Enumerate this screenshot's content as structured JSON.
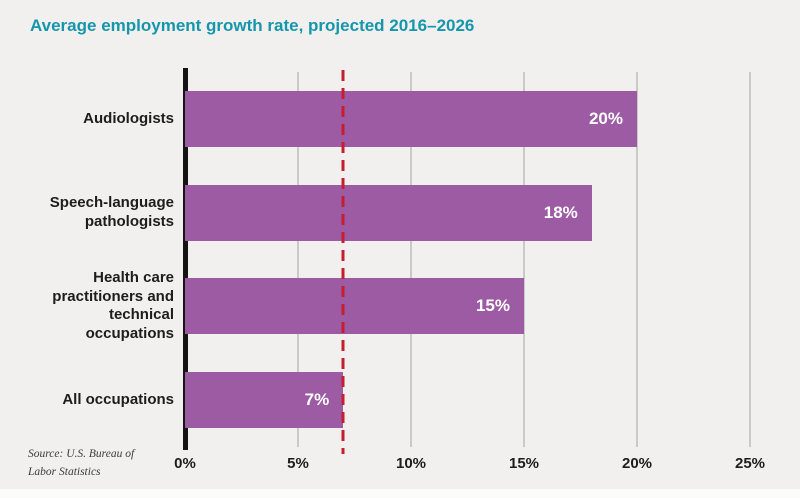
{
  "title": "Average employment growth rate, projected 2016–2026",
  "source": {
    "line1": "Source: U.S. Bureau of",
    "line2": "Labor Statistics"
  },
  "chart_data": {
    "type": "bar",
    "orientation": "horizontal",
    "title": "Average employment growth rate, projected 2016–2026",
    "categories": [
      "Audiologists",
      "Speech-language pathologists",
      "Health care practitioners and technical occupations",
      "All occupations"
    ],
    "values": [
      20,
      18,
      15,
      7
    ],
    "value_labels": [
      "20%",
      "18%",
      "15%",
      "7%"
    ],
    "x_ticks": [
      "0%",
      "5%",
      "10%",
      "15%",
      "20%",
      "25%"
    ],
    "x_tick_values": [
      0,
      5,
      10,
      15,
      20,
      25
    ],
    "xlim": [
      0,
      25
    ],
    "grid": true,
    "legend": false,
    "reference_line": {
      "value": 7,
      "style": "dashed",
      "color": "#c41e2f"
    },
    "bar_color": "#9c5ba3",
    "title_color": "#1596ac"
  }
}
